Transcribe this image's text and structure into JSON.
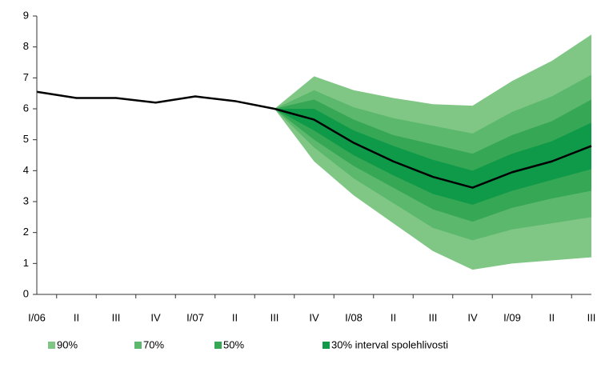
{
  "chart_data": {
    "type": "fan",
    "categories": [
      "I/06",
      "II",
      "III",
      "IV",
      "I/07",
      "II",
      "III",
      "IV",
      "I/08",
      "II",
      "III",
      "IV",
      "I/09",
      "II",
      "III"
    ],
    "ylim": [
      0,
      9
    ],
    "yticks": [
      0,
      1,
      2,
      3,
      4,
      5,
      6,
      7,
      8,
      9
    ],
    "line": {
      "color": "#000000",
      "values": [
        6.55,
        6.35,
        6.35,
        6.2,
        6.4,
        6.25,
        6.0,
        5.65,
        4.9,
        4.3,
        3.8,
        3.45,
        3.95,
        4.3,
        4.8
      ]
    },
    "series": [
      {
        "name": "90%",
        "color": "#80c785",
        "upper": [
          null,
          null,
          null,
          null,
          null,
          null,
          6.0,
          7.05,
          6.6,
          6.35,
          6.15,
          6.1,
          6.9,
          7.55,
          8.4
        ],
        "lower": [
          null,
          null,
          null,
          null,
          null,
          null,
          6.0,
          4.3,
          3.2,
          2.3,
          1.4,
          0.8,
          1.0,
          1.1,
          1.2
        ]
      },
      {
        "name": "70%",
        "color": "#5cb86c",
        "upper": [
          null,
          null,
          null,
          null,
          null,
          null,
          6.0,
          6.6,
          6.05,
          5.7,
          5.45,
          5.2,
          5.9,
          6.4,
          7.1
        ],
        "lower": [
          null,
          null,
          null,
          null,
          null,
          null,
          6.0,
          4.75,
          3.75,
          2.95,
          2.15,
          1.75,
          2.1,
          2.3,
          2.5
        ]
      },
      {
        "name": "50%",
        "color": "#35a755",
        "upper": [
          null,
          null,
          null,
          null,
          null,
          null,
          6.0,
          6.3,
          5.65,
          5.15,
          4.85,
          4.55,
          5.15,
          5.6,
          6.3
        ],
        "lower": [
          null,
          null,
          null,
          null,
          null,
          null,
          6.0,
          5.0,
          4.15,
          3.45,
          2.75,
          2.35,
          2.8,
          3.1,
          3.35
        ]
      },
      {
        "name": "30% interval spolehlivosti",
        "color": "#0e9a48",
        "upper": [
          null,
          null,
          null,
          null,
          null,
          null,
          6.0,
          6.0,
          5.3,
          4.8,
          4.35,
          4.0,
          4.55,
          4.95,
          5.55
        ],
        "lower": [
          null,
          null,
          null,
          null,
          null,
          null,
          6.0,
          5.3,
          4.5,
          3.85,
          3.25,
          2.9,
          3.35,
          3.7,
          4.05
        ]
      }
    ]
  }
}
